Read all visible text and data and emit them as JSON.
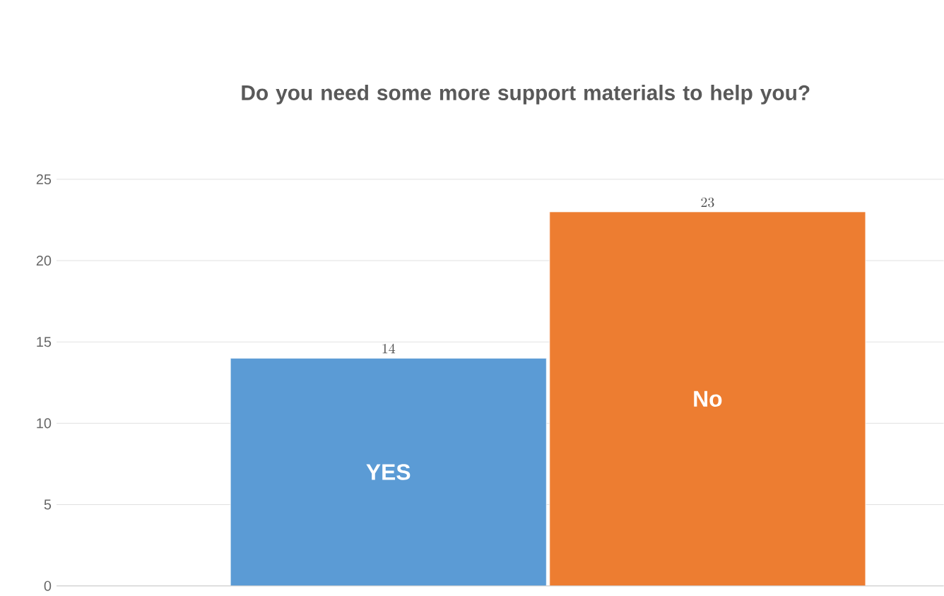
{
  "chart_data": {
    "type": "bar",
    "title": "Do you need some more support materials to help you?",
    "categories": [
      "YES",
      "No"
    ],
    "values": [
      14,
      23
    ],
    "colors": [
      "#5b9bd5",
      "#ed7d31"
    ],
    "ylim": [
      0,
      25
    ],
    "yticks": [
      0,
      5,
      10,
      15,
      20,
      25
    ],
    "grid": "y",
    "data_labels": true
  }
}
